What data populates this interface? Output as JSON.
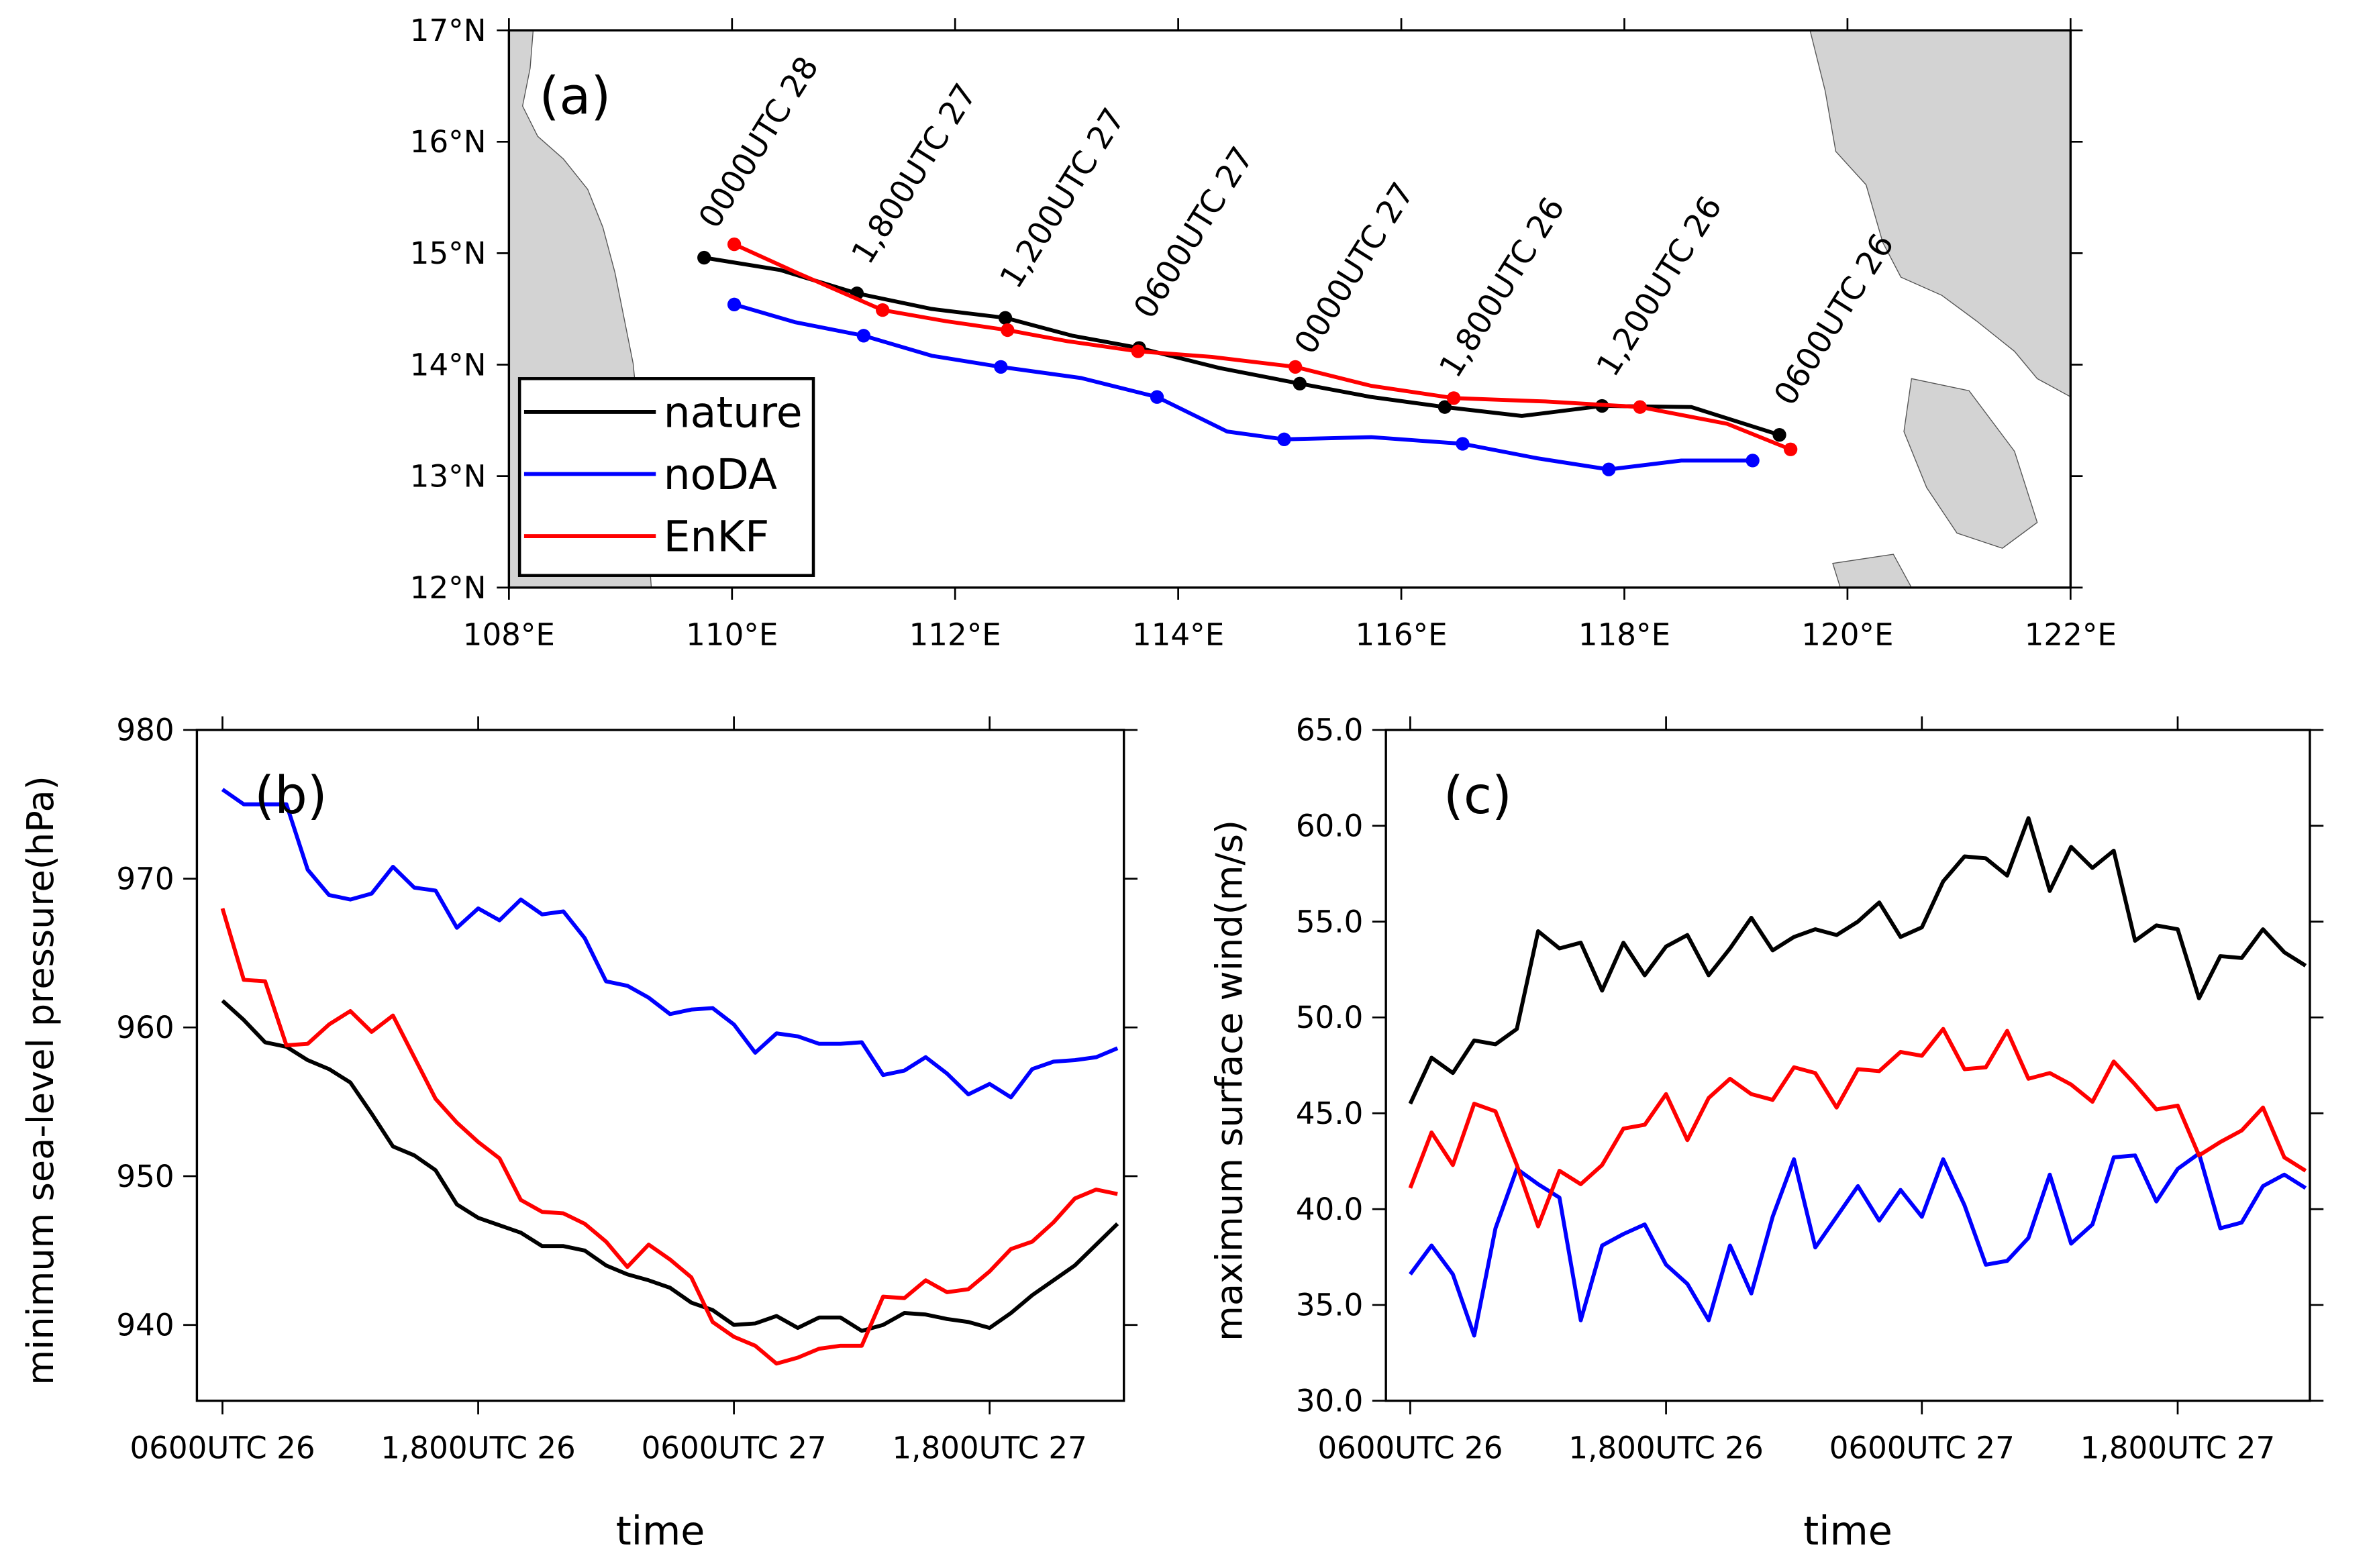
{
  "chart_data": [
    {
      "type": "line",
      "label": "(a)",
      "legend": "lower left",
      "xlim": [
        108,
        122
      ],
      "ylim": [
        12,
        17
      ],
      "xticks": [
        {
          "value": 108,
          "label": "108°E"
        },
        {
          "value": 110,
          "label": "110°E"
        },
        {
          "value": 112,
          "label": "112°E"
        },
        {
          "value": 114,
          "label": "114°E"
        },
        {
          "value": 116,
          "label": "116°E"
        },
        {
          "value": 118,
          "label": "118°E"
        },
        {
          "value": 120,
          "label": "120°E"
        },
        {
          "value": 122,
          "label": "122°E"
        }
      ],
      "yticks": [
        {
          "value": 12,
          "label": "12°N"
        },
        {
          "value": 13,
          "label": "13°N"
        },
        {
          "value": 14,
          "label": "14°N"
        },
        {
          "value": 15,
          "label": "15°N"
        },
        {
          "value": 16,
          "label": "16°N"
        },
        {
          "value": 17,
          "label": "17°N"
        }
      ],
      "marker_every": 2,
      "annotations": [
        "0600UTC 26",
        "1,200UTC 26",
        "1,800UTC 26",
        "0000UTC 27",
        "0600UTC 27",
        "1,200UTC 27",
        "1,800UTC 27",
        "0000UTC 28"
      ],
      "series": [
        {
          "name": "nature",
          "color": "#000000",
          "x": [
            119.39,
            118.6,
            117.8,
            117.08,
            116.39,
            115.73,
            115.09,
            114.37,
            113.65,
            113.05,
            112.45,
            111.79,
            111.12,
            110.43,
            109.75
          ],
          "y": [
            13.37,
            13.62,
            13.63,
            13.54,
            13.62,
            13.71,
            13.83,
            13.97,
            14.15,
            14.26,
            14.42,
            14.5,
            14.64,
            14.85,
            14.96
          ]
        },
        {
          "name": "noDA",
          "color": "#0000ff",
          "x": [
            119.15,
            118.51,
            117.86,
            117.22,
            116.55,
            115.73,
            114.95,
            114.44,
            113.81,
            113.13,
            112.41,
            111.79,
            111.18,
            110.57,
            110.02
          ],
          "y": [
            13.14,
            13.14,
            13.06,
            13.16,
            13.29,
            13.35,
            13.33,
            13.4,
            13.71,
            13.88,
            13.98,
            14.08,
            14.26,
            14.38,
            14.54
          ]
        },
        {
          "name": "EnKF",
          "color": "#ff0000",
          "x": [
            119.49,
            118.92,
            118.14,
            117.29,
            116.47,
            115.73,
            115.05,
            114.3,
            113.64,
            113.01,
            112.47,
            111.92,
            111.35,
            110.57,
            110.02
          ],
          "y": [
            13.24,
            13.47,
            13.62,
            13.67,
            13.7,
            13.81,
            13.98,
            14.07,
            14.12,
            14.21,
            14.31,
            14.39,
            14.49,
            14.83,
            15.08
          ]
        }
      ]
    },
    {
      "type": "line",
      "label": "(b)",
      "x_label": "time",
      "y_label": "minimum sea-level pressure(hPa)",
      "x": [
        0,
        1,
        2,
        3,
        4,
        5,
        6,
        7,
        8,
        9,
        10,
        11,
        12,
        13,
        14,
        15,
        16,
        17,
        18,
        19,
        20,
        21,
        22,
        23,
        24,
        25,
        26,
        27,
        28,
        29,
        30,
        31,
        32,
        33,
        34,
        35,
        36,
        37,
        38,
        39,
        40,
        41,
        42
      ],
      "xlim": [
        -1.2,
        42.3
      ],
      "ylim": [
        934.9,
        980
      ],
      "xticks": [
        {
          "value": 0,
          "label": "0600UTC 26"
        },
        {
          "value": 12,
          "label": "1,800UTC 26"
        },
        {
          "value": 24,
          "label": "0600UTC 27"
        },
        {
          "value": 36,
          "label": "1,800UTC 27"
        }
      ],
      "yticks": [
        940,
        950,
        960,
        970,
        980
      ],
      "series": [
        {
          "name": "nature",
          "color": "#000000",
          "values": [
            961.8,
            960.5,
            959,
            958.7,
            957.8,
            957.2,
            956.3,
            954.2,
            952,
            951.4,
            950.4,
            948.1,
            947.2,
            946.7,
            946.2,
            945.3,
            945.3,
            945,
            944,
            943.4,
            943,
            942.5,
            941.5,
            941,
            940,
            940.1,
            940.6,
            939.8,
            940.5,
            940.5,
            939.6,
            940,
            940.8,
            940.7,
            940.4,
            940.2,
            939.8,
            940.8,
            942,
            943,
            944,
            945.4,
            946.8
          ]
        },
        {
          "name": "noDA",
          "color": "#0000ff",
          "values": [
            976,
            975,
            975,
            975,
            970.6,
            968.9,
            968.6,
            969,
            970.8,
            969.4,
            969.2,
            966.7,
            968,
            967.2,
            968.6,
            967.6,
            967.8,
            966,
            963.1,
            962.8,
            962,
            960.9,
            961.2,
            961.3,
            960.2,
            958.3,
            959.6,
            959.4,
            958.9,
            958.9,
            959,
            956.8,
            957.1,
            958,
            956.9,
            955.5,
            956.2,
            955.3,
            957.2,
            957.7,
            957.8,
            958,
            958.6
          ]
        },
        {
          "name": "EnKF",
          "color": "#ff0000",
          "values": [
            968,
            963.2,
            963.1,
            958.8,
            958.9,
            960.2,
            961.1,
            959.7,
            960.8,
            958,
            955.2,
            953.6,
            952.3,
            951.2,
            948.4,
            947.6,
            947.5,
            946.8,
            945.6,
            943.9,
            945.4,
            944.4,
            943.2,
            940.2,
            939.2,
            938.6,
            937.4,
            937.8,
            938.4,
            938.6,
            938.6,
            941.9,
            941.8,
            943,
            942.2,
            942.4,
            943.6,
            945.1,
            945.6,
            946.9,
            948.5,
            949.1,
            948.8
          ]
        }
      ]
    },
    {
      "type": "line",
      "label": "(c)",
      "x_label": "time",
      "y_label": "maximum surface wind(m/s)",
      "x": [
        0,
        1,
        2,
        3,
        4,
        5,
        6,
        7,
        8,
        9,
        10,
        11,
        12,
        13,
        14,
        15,
        16,
        17,
        18,
        19,
        20,
        21,
        22,
        23,
        24,
        25,
        26,
        27,
        28,
        29,
        30,
        31,
        32,
        33,
        34,
        35,
        36,
        37,
        38,
        39,
        40,
        41,
        42
      ],
      "xlim": [
        -1.14,
        42.2
      ],
      "ylim": [
        30,
        65
      ],
      "xticks": [
        {
          "value": 0,
          "label": "0600UTC 26"
        },
        {
          "value": 12,
          "label": "1,800UTC 26"
        },
        {
          "value": 24,
          "label": "0600UTC 27"
        },
        {
          "value": 36,
          "label": "1,800UTC 27"
        }
      ],
      "yticks": [
        {
          "value": 30,
          "label": "30.0"
        },
        {
          "value": 35,
          "label": "35.0"
        },
        {
          "value": 40,
          "label": "40.0"
        },
        {
          "value": 45,
          "label": "45.0"
        },
        {
          "value": 50,
          "label": "50.0"
        },
        {
          "value": 55,
          "label": "55.0"
        },
        {
          "value": 60,
          "label": "60.0"
        },
        {
          "value": 65,
          "label": "65.0"
        }
      ],
      "series": [
        {
          "name": "nature",
          "color": "#000000",
          "values": [
            45.5,
            47.9,
            47.1,
            48.8,
            48.6,
            49.4,
            54.5,
            53.6,
            53.9,
            51.4,
            53.9,
            52.2,
            53.7,
            54.3,
            52.2,
            53.6,
            55.2,
            53.5,
            54.2,
            54.6,
            54.3,
            55,
            56,
            54.2,
            54.7,
            57.1,
            58.4,
            58.3,
            57.4,
            60.4,
            56.6,
            58.9,
            57.8,
            58.7,
            54,
            54.8,
            54.6,
            51,
            53.2,
            53.1,
            54.6,
            53.4,
            52.7
          ]
        },
        {
          "name": "noDA",
          "color": "#0000ff",
          "values": [
            36.6,
            38.1,
            36.6,
            33.4,
            39,
            42.1,
            41.3,
            40.6,
            34.2,
            38.1,
            38.7,
            39.2,
            37.1,
            36.1,
            34.2,
            38.1,
            35.6,
            39.6,
            42.6,
            38,
            39.6,
            41.2,
            39.4,
            41,
            39.6,
            42.6,
            40.2,
            37.1,
            37.3,
            38.5,
            41.8,
            38.2,
            39.2,
            42.7,
            42.8,
            40.4,
            42.1,
            42.9,
            39,
            39.3,
            41.2,
            41.8,
            41.1
          ]
        },
        {
          "name": "EnKF",
          "color": "#ff0000",
          "values": [
            41.1,
            44,
            42.3,
            45.5,
            45.1,
            42.3,
            39.1,
            42,
            41.3,
            42.3,
            44.2,
            44.4,
            46,
            43.6,
            45.8,
            46.8,
            46,
            45.7,
            47.4,
            47.1,
            45.3,
            47.3,
            47.2,
            48.2,
            48,
            49.4,
            47.3,
            47.4,
            49.3,
            46.8,
            47.1,
            46.5,
            45.6,
            47.7,
            46.5,
            45.2,
            45.4,
            42.8,
            43.5,
            44.1,
            45.3,
            42.7,
            42
          ]
        }
      ]
    }
  ]
}
